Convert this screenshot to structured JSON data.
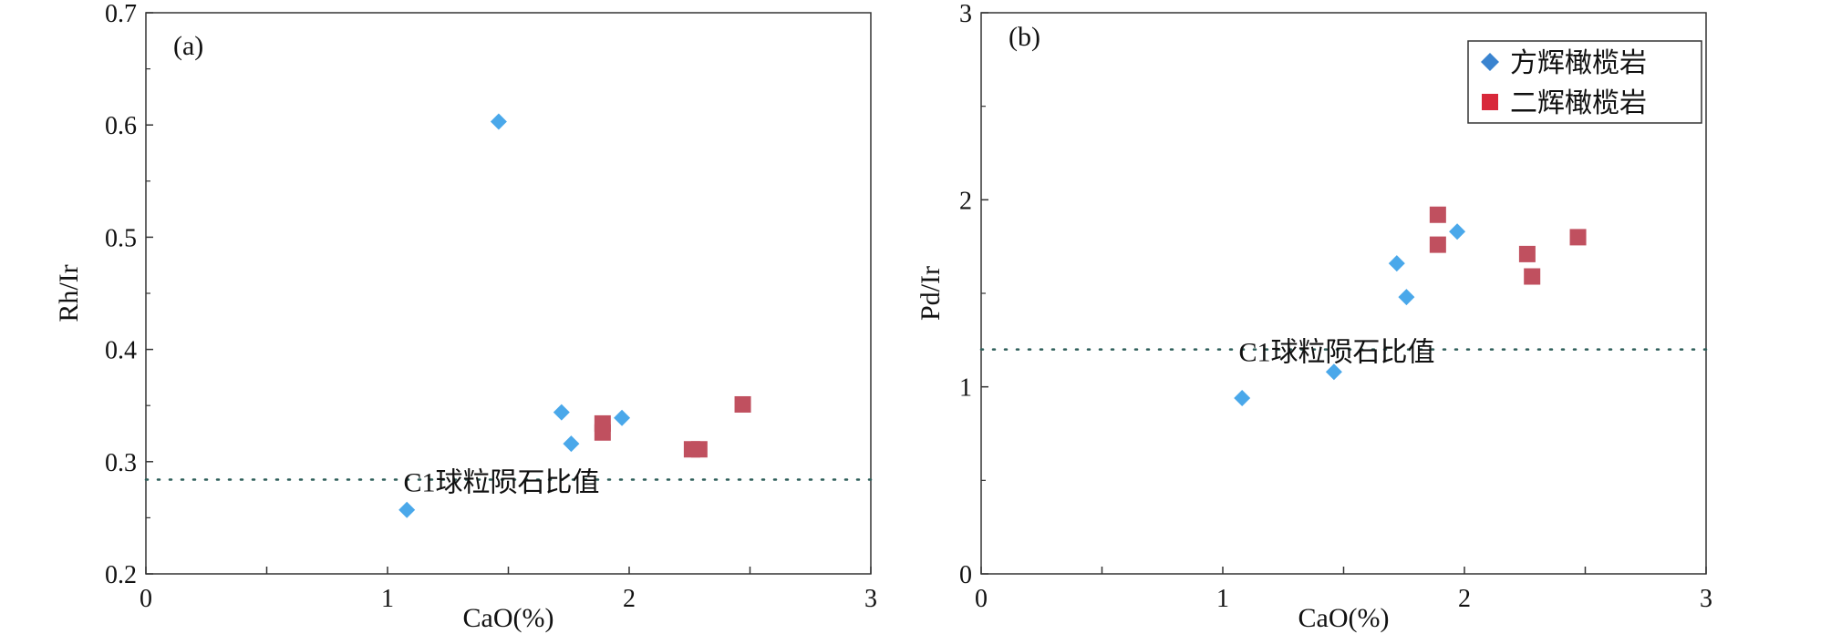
{
  "colors": {
    "series1": "#4aa8ea",
    "series2": "#c0505f",
    "axis": "#333333",
    "reference": "#2e5f5a"
  },
  "chart_data": [
    {
      "type": "scatter",
      "panel_label": "(a)",
      "xlabel": "CaO(%)",
      "ylabel": "Rh/Ir",
      "xlim": [
        0,
        3
      ],
      "ylim": [
        0.2,
        0.7
      ],
      "xticks": [
        "0",
        "1",
        "2",
        "3"
      ],
      "yticks": [
        "0.2",
        "0.3",
        "0.4",
        "0.5",
        "0.6",
        "0.7"
      ],
      "reference": {
        "y": 0.284,
        "label": "C1球粒陨石比值"
      },
      "series": [
        {
          "name": "方辉橄榄岩",
          "marker": "diamond",
          "points": [
            [
              1.08,
              0.257
            ],
            [
              1.46,
              0.603
            ],
            [
              1.72,
              0.344
            ],
            [
              1.76,
              0.316
            ],
            [
              1.97,
              0.339
            ]
          ]
        },
        {
          "name": "二辉橄榄岩",
          "marker": "square",
          "points": [
            [
              1.89,
              0.334
            ],
            [
              1.89,
              0.326
            ],
            [
              2.26,
              0.311
            ],
            [
              2.29,
              0.311
            ],
            [
              2.47,
              0.351
            ]
          ]
        }
      ]
    },
    {
      "type": "scatter",
      "panel_label": "(b)",
      "xlabel": "CaO(%)",
      "ylabel": "Pd/Ir",
      "xlim": [
        0,
        3
      ],
      "ylim": [
        0,
        3
      ],
      "xticks": [
        "0",
        "1",
        "2",
        "3"
      ],
      "yticks": [
        "0",
        "1",
        "2",
        "3"
      ],
      "reference": {
        "y": 1.2,
        "label": "C1球粒陨石比值"
      },
      "legend": "top-right",
      "series": [
        {
          "name": "方辉橄榄岩",
          "marker": "diamond",
          "points": [
            [
              1.08,
              0.94
            ],
            [
              1.46,
              1.08
            ],
            [
              1.72,
              1.66
            ],
            [
              1.76,
              1.48
            ],
            [
              1.97,
              1.83
            ]
          ]
        },
        {
          "name": "二辉橄榄岩",
          "marker": "square",
          "points": [
            [
              1.89,
              1.92
            ],
            [
              1.89,
              1.76
            ],
            [
              2.26,
              1.71
            ],
            [
              2.28,
              1.59
            ],
            [
              2.47,
              1.8
            ]
          ]
        }
      ]
    }
  ]
}
